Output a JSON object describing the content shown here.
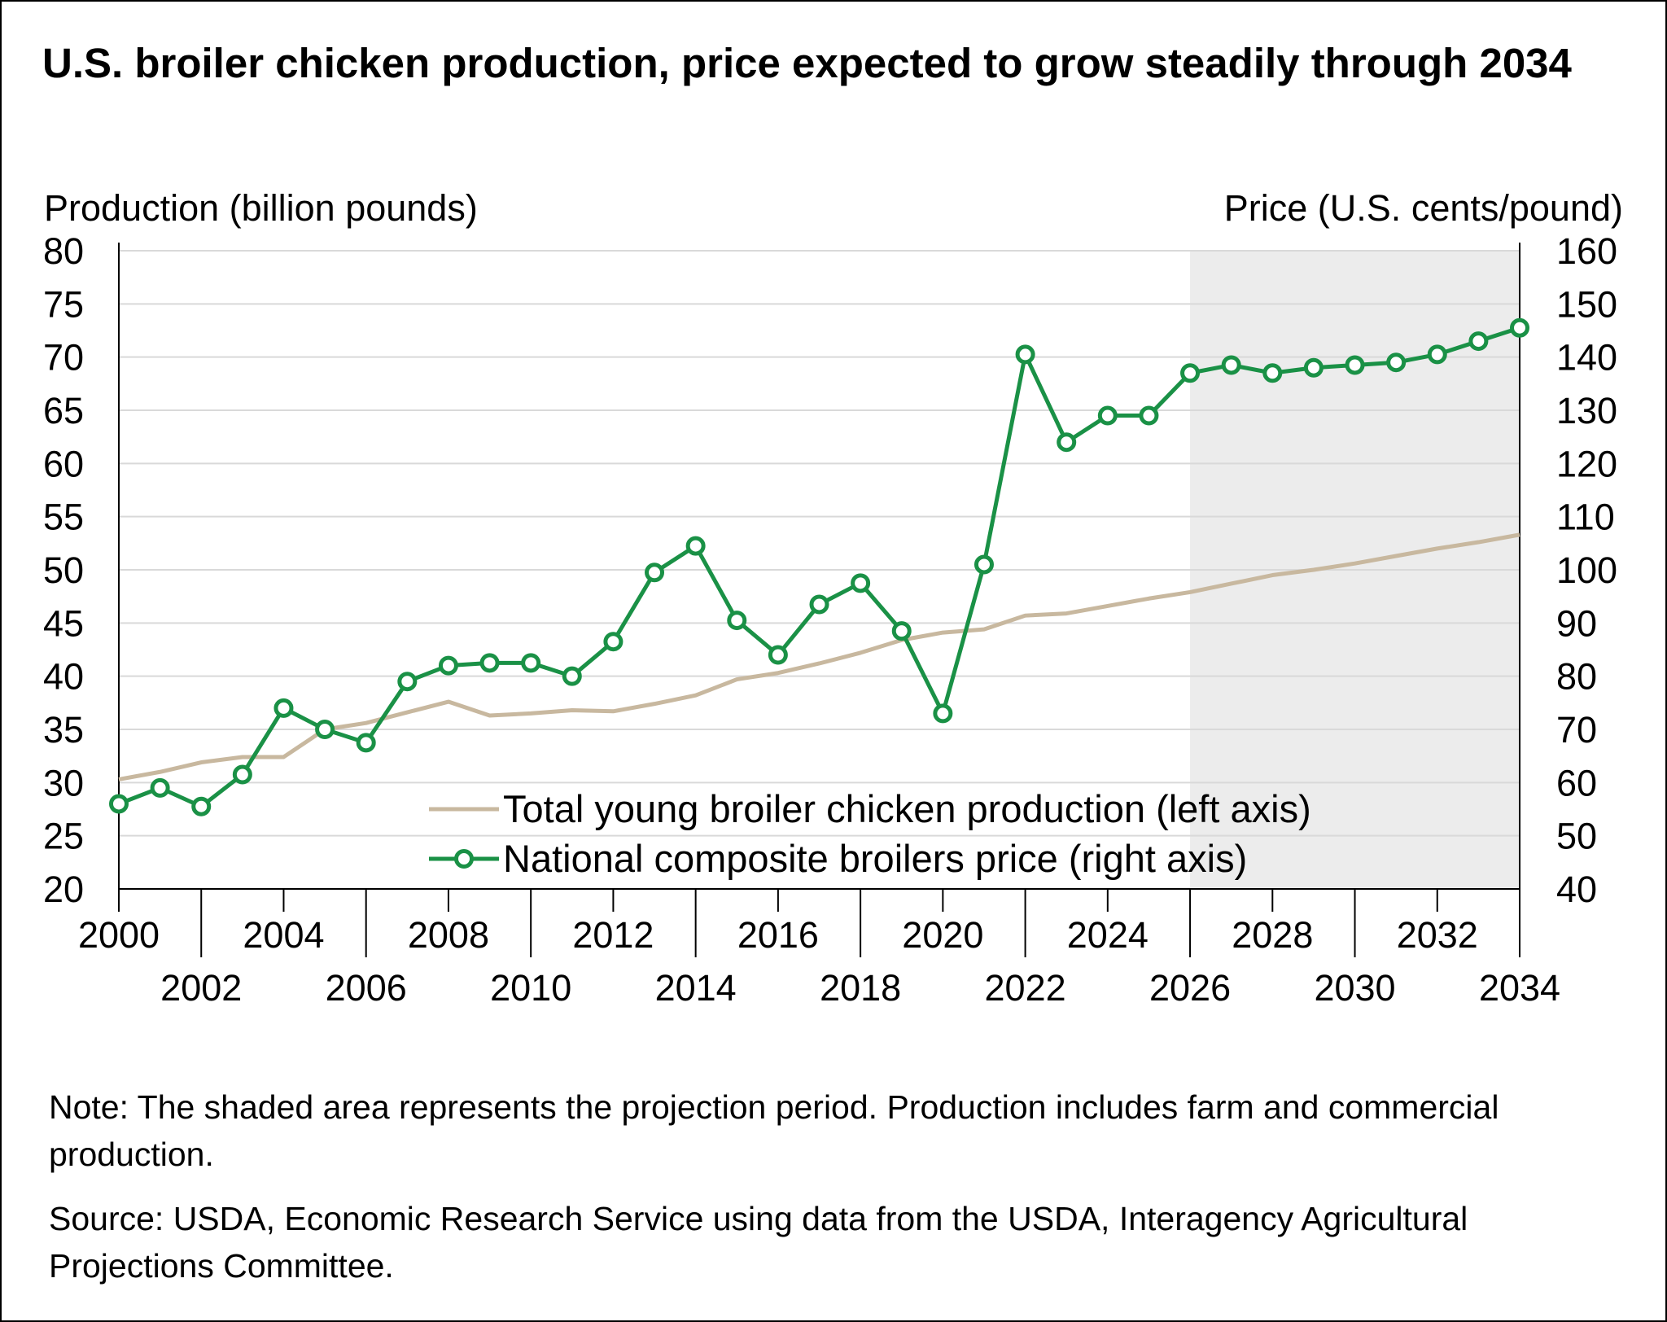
{
  "title": "U.S. broiler chicken production, price expected to grow steadily through 2034",
  "note": "Note: The shaded area represents the projection period. Production includes farm and commercial production.",
  "source": "Source: USDA, Economic Research Service using data from the USDA, Interagency Agricultural Projections Committee.",
  "colors": {
    "production": "#c8b89f",
    "price": "#1a9146",
    "grid": "#d9d9d9",
    "shade": "#ececec",
    "axis": "#000000"
  },
  "chart_data": {
    "type": "line",
    "title": "U.S. broiler chicken production, price expected to grow steadily through 2034",
    "ylabel_left": "Production (billion pounds)",
    "ylabel_right": "Price (U.S. cents/pound)",
    "y_left_lim": [
      20,
      80
    ],
    "y_right_lim": [
      40,
      160
    ],
    "y_left_ticks": [
      20,
      25,
      30,
      35,
      40,
      45,
      50,
      55,
      60,
      65,
      70,
      75,
      80
    ],
    "y_right_ticks": [
      40,
      50,
      60,
      70,
      80,
      90,
      100,
      110,
      120,
      130,
      140,
      150,
      160
    ],
    "x_range": [
      2000,
      2034
    ],
    "x_ticks_top": [
      2000,
      2004,
      2008,
      2012,
      2016,
      2020,
      2024,
      2028,
      2032
    ],
    "x_ticks_bottom": [
      2002,
      2006,
      2010,
      2014,
      2018,
      2022,
      2026,
      2030,
      2034
    ],
    "grid": true,
    "projection_start": 2026,
    "projection_end": 2034,
    "x": [
      2000,
      2001,
      2002,
      2003,
      2004,
      2005,
      2006,
      2007,
      2008,
      2009,
      2010,
      2011,
      2012,
      2013,
      2014,
      2015,
      2016,
      2017,
      2018,
      2019,
      2020,
      2021,
      2022,
      2023,
      2024,
      2025,
      2026,
      2027,
      2028,
      2029,
      2030,
      2031,
      2032,
      2033,
      2034
    ],
    "series": [
      {
        "name": "Total young broiler chicken production (left axis)",
        "axis": "left",
        "values": [
          30.3,
          31.0,
          31.9,
          32.4,
          32.4,
          35.0,
          35.6,
          36.6,
          37.6,
          36.3,
          36.5,
          36.8,
          36.7,
          37.4,
          38.2,
          39.7,
          40.3,
          41.2,
          42.2,
          43.4,
          44.1,
          44.4,
          45.7,
          45.9,
          46.6,
          47.3,
          47.9,
          48.7,
          49.5,
          50.0,
          50.6,
          51.3,
          52.0,
          52.6,
          53.3
        ]
      },
      {
        "name": "National composite broilers price (right axis)",
        "axis": "right",
        "values": [
          56.0,
          59.0,
          55.5,
          61.5,
          74.0,
          70.0,
          67.5,
          79.0,
          82.0,
          82.5,
          82.5,
          80.0,
          86.5,
          99.5,
          104.5,
          90.5,
          84.0,
          93.5,
          97.5,
          88.5,
          73.0,
          101.0,
          140.5,
          124.0,
          129.0,
          129.0,
          137.0,
          138.5,
          137.0,
          138.0,
          138.5,
          139.0,
          140.5,
          143.0,
          145.5
        ]
      }
    ],
    "legend_position": "bottom-right"
  }
}
